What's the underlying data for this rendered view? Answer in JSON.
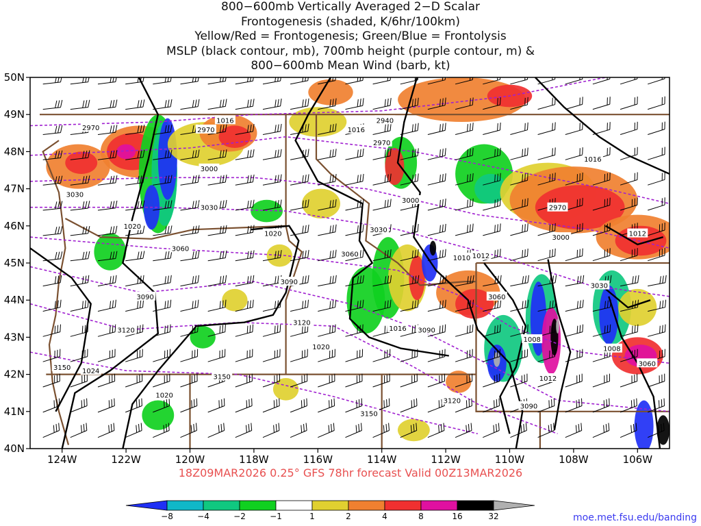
{
  "title": {
    "lines": [
      "800−600mb Vertically Averaged 2−D Scalar",
      "Frontogenesis (shaded, K/6hr/100km)",
      "Yellow/Red = Frontogenesis;  Green/Blue = Frontolysis",
      "MSLP (black contour, mb), 700mb height (purple contour, m) &",
      "800−600mb Mean Wind (barb, kt)"
    ]
  },
  "map": {
    "lat_labels": [
      "50N",
      "49N",
      "48N",
      "47N",
      "46N",
      "45N",
      "44N",
      "43N",
      "42N",
      "41N",
      "40N"
    ],
    "lon_labels": [
      "124W",
      "122W",
      "120W",
      "118W",
      "116W",
      "114W",
      "112W",
      "110W",
      "108W",
      "106W"
    ],
    "lat_range": [
      40,
      50
    ],
    "lon_range": [
      -125,
      -105
    ],
    "height_labels": [
      {
        "text": "2940",
        "lon": -113.9,
        "lat": 48.85
      },
      {
        "text": "2970",
        "lon": -123.1,
        "lat": 48.65
      },
      {
        "text": "2970",
        "lon": -119.5,
        "lat": 48.6
      },
      {
        "text": "2970",
        "lon": -114.0,
        "lat": 48.25
      },
      {
        "text": "2970",
        "lon": -108.5,
        "lat": 46.5
      },
      {
        "text": "3000",
        "lon": -119.4,
        "lat": 47.55
      },
      {
        "text": "3000",
        "lon": -113.1,
        "lat": 46.7
      },
      {
        "text": "3000",
        "lon": -108.4,
        "lat": 45.7
      },
      {
        "text": "3030",
        "lon": -123.6,
        "lat": 46.85
      },
      {
        "text": "3030",
        "lon": -119.4,
        "lat": 46.5
      },
      {
        "text": "3030",
        "lon": -114.1,
        "lat": 45.9
      },
      {
        "text": "3030",
        "lon": -107.2,
        "lat": 44.4
      },
      {
        "text": "3060",
        "lon": -120.3,
        "lat": 45.4
      },
      {
        "text": "3060",
        "lon": -115.0,
        "lat": 45.25
      },
      {
        "text": "3060",
        "lon": -110.4,
        "lat": 44.1
      },
      {
        "text": "3060",
        "lon": -105.7,
        "lat": 42.3
      },
      {
        "text": "3090",
        "lon": -121.4,
        "lat": 44.1
      },
      {
        "text": "3090",
        "lon": -116.9,
        "lat": 44.5
      },
      {
        "text": "3090",
        "lon": -112.6,
        "lat": 43.2
      },
      {
        "text": "3090",
        "lon": -109.4,
        "lat": 41.15
      },
      {
        "text": "3120",
        "lon": -122.0,
        "lat": 43.2
      },
      {
        "text": "3120",
        "lon": -116.5,
        "lat": 43.4
      },
      {
        "text": "3120",
        "lon": -111.8,
        "lat": 41.3
      },
      {
        "text": "3150",
        "lon": -124.0,
        "lat": 42.2
      },
      {
        "text": "3150",
        "lon": -119.0,
        "lat": 41.95
      },
      {
        "text": "3150",
        "lon": -114.4,
        "lat": 40.95
      }
    ],
    "pressure_labels": [
      {
        "text": "1016",
        "lon": -118.9,
        "lat": 48.85
      },
      {
        "text": "1016",
        "lon": -114.8,
        "lat": 48.6
      },
      {
        "text": "1016",
        "lon": -107.4,
        "lat": 47.8
      },
      {
        "text": "1016",
        "lon": -113.5,
        "lat": 43.25
      },
      {
        "text": "1020",
        "lon": -121.8,
        "lat": 46.0
      },
      {
        "text": "1020",
        "lon": -117.4,
        "lat": 45.8
      },
      {
        "text": "1020",
        "lon": -115.9,
        "lat": 42.75
      },
      {
        "text": "1020",
        "lon": -120.8,
        "lat": 41.45
      },
      {
        "text": "1024",
        "lon": -123.1,
        "lat": 42.1
      },
      {
        "text": "1012",
        "lon": -106.0,
        "lat": 45.8
      },
      {
        "text": "1012",
        "lon": -108.8,
        "lat": 41.9
      },
      {
        "text": "1012",
        "lon": -110.9,
        "lat": 45.2
      },
      {
        "text": "1008",
        "lon": -109.3,
        "lat": 42.95
      },
      {
        "text": "1008",
        "lon": -106.8,
        "lat": 42.7
      },
      {
        "text": "1010",
        "lon": -111.5,
        "lat": 45.15
      }
    ]
  },
  "footer": {
    "run_info": "18Z09MAR2026 0.25° GFS 78hr forecast Valid 00Z13MAR2026",
    "credit": "moe.met.fsu.edu/banding"
  },
  "colorbar": {
    "labels": [
      "−8",
      "−4",
      "−2",
      "−1",
      "1",
      "2",
      "4",
      "8",
      "16",
      "32"
    ],
    "colors": [
      "#2030f5",
      "#10b8c8",
      "#10c880",
      "#10d020",
      "#ffffff",
      "#e0d030",
      "#f08030",
      "#f03030",
      "#e010a0",
      "#000000",
      "#b0b0b0"
    ]
  },
  "colors": {
    "mslp_contour": "#000000",
    "height_contour": "#a020d0",
    "border": "#7a5030",
    "footer_text": "#e85050"
  }
}
